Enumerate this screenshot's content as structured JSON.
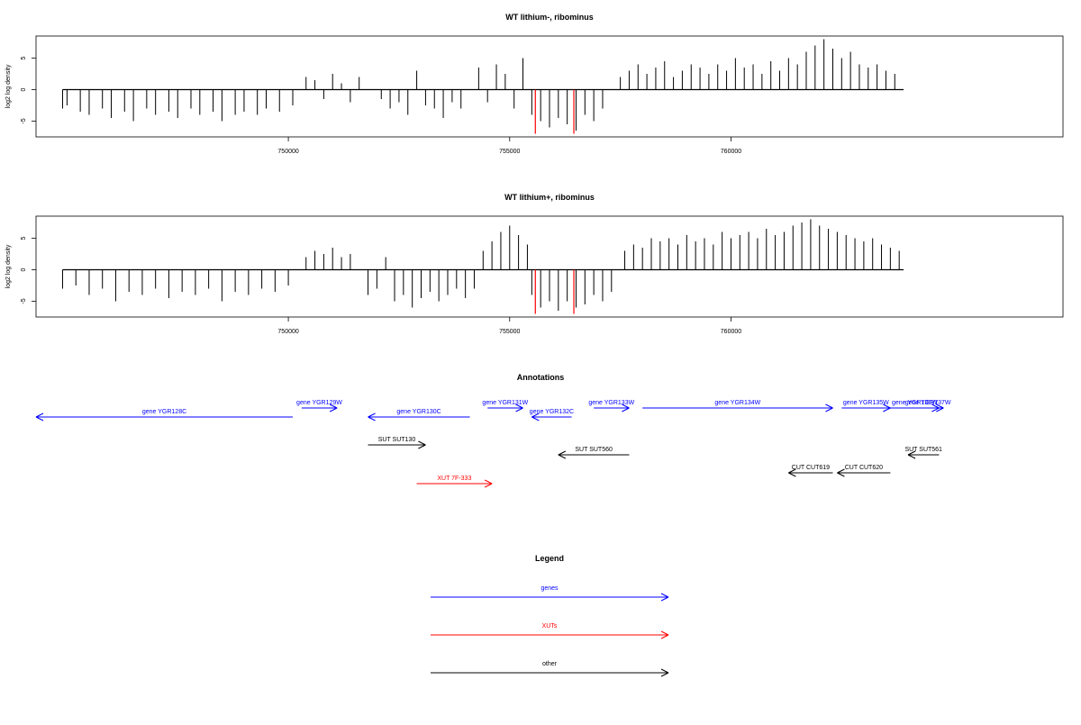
{
  "colors": {
    "gene": "#0000ff",
    "xut": "#ff0000",
    "other": "#000000",
    "highlight": "#ff0000",
    "axis": "#000000"
  },
  "chart_data": [
    {
      "type": "bar",
      "title": "WT lithium-, ribominus",
      "xlabel": "",
      "ylabel": "log2 log density",
      "xlim": [
        744300,
        767500
      ],
      "ylim": [
        -7.5,
        8.5
      ],
      "xticks": [
        750000,
        755000,
        760000
      ],
      "xtick_labels": [
        "750000",
        "755000",
        "760000"
      ],
      "yticks": [
        -5,
        0,
        5
      ],
      "ytick_labels": [
        "-5",
        "0",
        "5"
      ],
      "grid": false,
      "baseline_range": [
        744900,
        763900
      ],
      "highlight_positions": [
        755580,
        756450
      ],
      "highlight_values": [
        -7.0,
        -7.0
      ],
      "segments": [
        {
          "x": [
            744900,
            745000,
            745300,
            745500,
            745800,
            746000,
            746300,
            746500,
            746800,
            747000,
            747300,
            747500,
            747800,
            748000,
            748300,
            748500,
            748800,
            749000,
            749300,
            749500,
            749800,
            750100
          ],
          "y": [
            -3,
            -2.5,
            -3.5,
            -4,
            -3,
            -4.5,
            -3.5,
            -5,
            -3,
            -4,
            -3.5,
            -4.5,
            -3,
            -4,
            -3.5,
            -5,
            -4,
            -3.5,
            -4,
            -3,
            -3.5,
            -2.5
          ]
        },
        {
          "x": [
            750400,
            750600,
            750800,
            751000,
            751200,
            751400,
            751600
          ],
          "y": [
            2,
            1.5,
            -1.5,
            2.5,
            1,
            -2,
            2
          ]
        },
        {
          "x": [
            752100,
            752300,
            752500,
            752700,
            752900,
            753100,
            753300,
            753500,
            753700,
            753900
          ],
          "y": [
            -1.5,
            -3,
            -2,
            -4,
            3,
            -2.5,
            -3,
            -4.5,
            -2,
            -3
          ]
        },
        {
          "x": [
            754300,
            754500,
            754700,
            754900,
            755100,
            755300
          ],
          "y": [
            3.5,
            -2,
            4,
            2.5,
            -3,
            5
          ]
        },
        {
          "x": [
            755500,
            755700,
            755900,
            756100,
            756300,
            756500,
            756700,
            756900,
            757100
          ],
          "y": [
            -4,
            -5,
            -6,
            -4.5,
            -5.5,
            -6.5,
            -4,
            -5,
            -3
          ]
        },
        {
          "x": [
            757500,
            757700,
            757900,
            758100,
            758300,
            758500,
            758700,
            758900,
            759100,
            759300,
            759500,
            759700,
            759900,
            760100,
            760300,
            760500,
            760700,
            760900,
            761100,
            761300,
            761500,
            761700,
            761900,
            762100,
            762300,
            762500,
            762700,
            762900,
            763100,
            763300,
            763500,
            763700
          ],
          "y": [
            2,
            3,
            4,
            2.5,
            3.5,
            4.5,
            2,
            3,
            4,
            3.5,
            2.5,
            4,
            3,
            5,
            3.5,
            4,
            2.5,
            4.5,
            3,
            5,
            4,
            6,
            7,
            8,
            6.5,
            5,
            6,
            4,
            3.5,
            4,
            3,
            2.5
          ]
        }
      ]
    },
    {
      "type": "bar",
      "title": "WT lithium+, ribominus",
      "xlabel": "",
      "ylabel": "log2 log density",
      "xlim": [
        744300,
        767500
      ],
      "ylim": [
        -7.5,
        8.5
      ],
      "xticks": [
        750000,
        755000,
        760000
      ],
      "xtick_labels": [
        "750000",
        "755000",
        "760000"
      ],
      "yticks": [
        -5,
        0,
        5
      ],
      "ytick_labels": [
        "-5",
        "0",
        "5"
      ],
      "grid": false,
      "baseline_range": [
        744900,
        763900
      ],
      "highlight_positions": [
        755580,
        756450
      ],
      "highlight_values": [
        -7.0,
        -7.0
      ],
      "segments": [
        {
          "x": [
            744900,
            745200,
            745500,
            745800,
            746100,
            746400,
            746700,
            747000,
            747300,
            747600,
            747900,
            748200,
            748500,
            748800,
            749100,
            749400,
            749700,
            750000
          ],
          "y": [
            -3,
            -2.5,
            -4,
            -3,
            -5,
            -3.5,
            -4,
            -3,
            -4.5,
            -3.5,
            -4,
            -3,
            -5,
            -3.5,
            -4,
            -3,
            -3.5,
            -2.5
          ]
        },
        {
          "x": [
            750400,
            750600,
            750800,
            751000,
            751200,
            751400
          ],
          "y": [
            2,
            3,
            2.5,
            3.5,
            2,
            2.5
          ]
        },
        {
          "x": [
            751800,
            752000,
            752200,
            752400,
            752600,
            752800,
            753000,
            753200,
            753400,
            753600,
            753800,
            754000,
            754200
          ],
          "y": [
            -4,
            -3,
            2,
            -5,
            -4,
            -6,
            -4.5,
            -3.5,
            -5,
            -4,
            -3,
            -4.5,
            -3
          ]
        },
        {
          "x": [
            754400,
            754600,
            754800,
            755000,
            755200,
            755400
          ],
          "y": [
            3,
            4.5,
            6,
            7,
            5.5,
            4
          ]
        },
        {
          "x": [
            755500,
            755700,
            755900,
            756100,
            756300,
            756500,
            756700,
            756900,
            757100,
            757300
          ],
          "y": [
            -4,
            -6,
            -5,
            -6.5,
            -5,
            -6,
            -5.5,
            -4,
            -5,
            -3.5
          ]
        },
        {
          "x": [
            757600,
            757800,
            758000,
            758200,
            758400,
            758600,
            758800,
            759000,
            759200,
            759400,
            759600,
            759800,
            760000,
            760200,
            760400,
            760600,
            760800,
            761000,
            761200,
            761400,
            761600,
            761800,
            762000,
            762200,
            762400,
            762600,
            762800,
            763000,
            763200,
            763400,
            763600,
            763800
          ],
          "y": [
            3,
            4,
            3.5,
            5,
            4.5,
            5,
            4,
            5.5,
            4.5,
            5,
            4,
            6,
            5,
            5.5,
            6,
            5,
            6.5,
            5.5,
            6,
            7,
            7.5,
            8,
            7,
            6.5,
            6,
            5.5,
            5,
            4.5,
            5,
            4,
            3.5,
            3
          ]
        }
      ]
    }
  ],
  "annotations": {
    "title": "Annotations",
    "items": [
      {
        "label": "gene YGR128C",
        "kind": "gene",
        "dir": "left",
        "start": 744300,
        "end": 750100,
        "row": 0
      },
      {
        "label": "gene YGR129W",
        "kind": "gene",
        "dir": "right",
        "start": 750300,
        "end": 751100,
        "row": 1
      },
      {
        "label": "gene YGR130C",
        "kind": "gene",
        "dir": "left",
        "start": 751800,
        "end": 754100,
        "row": 0
      },
      {
        "label": "gene YGR131W",
        "kind": "gene",
        "dir": "right",
        "start": 754500,
        "end": 755300,
        "row": 1
      },
      {
        "label": "gene YGR132C",
        "kind": "gene",
        "dir": "left",
        "start": 755500,
        "end": 756400,
        "row": 0
      },
      {
        "label": "gene YGR133W",
        "kind": "gene",
        "dir": "right",
        "start": 756900,
        "end": 757700,
        "row": 1
      },
      {
        "label": "gene YGR134W",
        "kind": "gene",
        "dir": "right",
        "start": 758000,
        "end": 762300,
        "row": 1
      },
      {
        "label": "gene YGR135W",
        "kind": "gene",
        "dir": "right",
        "start": 762500,
        "end": 763600,
        "row": 1
      },
      {
        "label": "gene YGR136W",
        "kind": "gene",
        "dir": "right",
        "start": 763600,
        "end": 764700,
        "row": 1
      },
      {
        "label": "gene YGR137W",
        "kind": "gene",
        "dir": "right",
        "start": 764100,
        "end": 764800,
        "row": 1
      },
      {
        "label": "SUT SUT130",
        "kind": "other",
        "dir": "right",
        "start": 751800,
        "end": 753100,
        "row": 2
      },
      {
        "label": "SUT SUT560",
        "kind": "other",
        "dir": "left",
        "start": 756100,
        "end": 757700,
        "row": 3
      },
      {
        "label": "SUT SUT561",
        "kind": "other",
        "dir": "left",
        "start": 764000,
        "end": 764700,
        "row": 3
      },
      {
        "label": "CUT CUT619",
        "kind": "other",
        "dir": "left",
        "start": 761300,
        "end": 762300,
        "row": 4
      },
      {
        "label": "CUT CUT620",
        "kind": "other",
        "dir": "left",
        "start": 762400,
        "end": 763600,
        "row": 4
      },
      {
        "label": "XUT 7F-333",
        "kind": "xut",
        "dir": "right",
        "start": 752900,
        "end": 754600,
        "row": 5
      }
    ]
  },
  "legend": {
    "title": "Legend",
    "entries": [
      {
        "label": "genes",
        "kind": "gene"
      },
      {
        "label": "XUTs",
        "kind": "xut"
      },
      {
        "label": "other",
        "kind": "other"
      }
    ]
  }
}
